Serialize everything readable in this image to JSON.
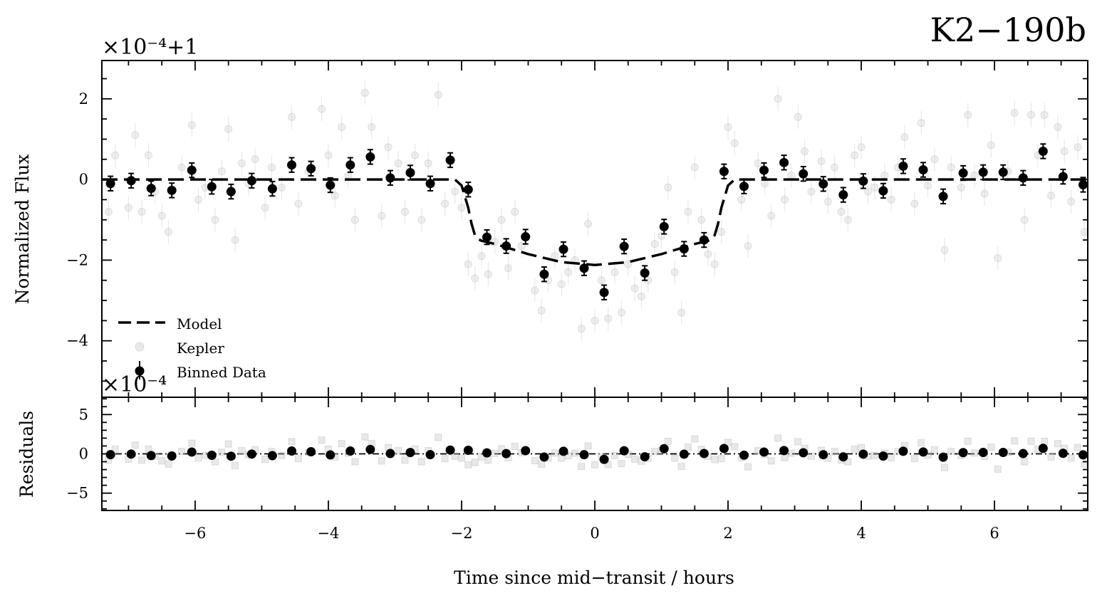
{
  "chart_data": {
    "type": "scatter",
    "title": "K2−190b",
    "xlabel": "Time since mid−transit / hours",
    "xlim": [
      -7.4,
      7.4
    ],
    "x_ticks": [
      "−6",
      "−4",
      "−2",
      "0",
      "2",
      "4",
      "6"
    ],
    "x_tick_values": [
      -6,
      -4,
      -2,
      0,
      2,
      4,
      6
    ],
    "panels": {
      "flux": {
        "ylabel": "Normalized Flux",
        "offset_label": "×10⁻⁴+1",
        "ylim": [
          -5.4,
          2.95
        ],
        "y_ticks": [
          "2",
          "0",
          "−2",
          "−4"
        ],
        "y_tick_values": [
          2,
          0,
          -2,
          -4
        ]
      },
      "residuals": {
        "ylabel": "Residuals",
        "offset_label": "×10⁻⁴",
        "ylim": [
          -7.2,
          7.2
        ],
        "y_ticks": [
          "5",
          "0",
          "−5"
        ],
        "y_tick_values": [
          5,
          0,
          -5
        ]
      }
    },
    "legend": {
      "placement": "lower-left",
      "entries": [
        "Model",
        "Kepler",
        "Binned Data"
      ]
    },
    "series": [
      {
        "name": "Model",
        "style": "dashed-line",
        "color": "#000000",
        "x": [
          -7.4,
          -2.1,
          -2.0,
          -1.9,
          -1.85,
          -1.8,
          -1.75,
          -1.7,
          -1.5,
          -1.0,
          -0.5,
          0.0,
          0.5,
          1.0,
          1.5,
          1.7,
          1.75,
          1.8,
          1.85,
          1.9,
          2.0,
          2.1,
          7.4
        ],
        "y": [
          0,
          0,
          -0.15,
          -0.7,
          -1.1,
          -1.38,
          -1.48,
          -1.52,
          -1.6,
          -1.85,
          -2.05,
          -2.12,
          -2.05,
          -1.85,
          -1.6,
          -1.52,
          -1.48,
          -1.38,
          -1.1,
          -0.7,
          -0.15,
          0,
          0
        ]
      },
      {
        "name": "Binned Data",
        "style": "marker-errorbar",
        "color": "#000000",
        "yerr": 0.18,
        "x": [
          -7.27,
          -6.96,
          -6.66,
          -6.35,
          -6.05,
          -5.75,
          -5.46,
          -5.15,
          -4.84,
          -4.55,
          -4.26,
          -3.97,
          -3.67,
          -3.37,
          -3.07,
          -2.77,
          -2.47,
          -2.17,
          -1.9,
          -1.62,
          -1.33,
          -1.04,
          -0.76,
          -0.47,
          -0.16,
          0.14,
          0.44,
          0.75,
          1.04,
          1.34,
          1.64,
          1.94,
          2.24,
          2.54,
          2.84,
          3.13,
          3.43,
          3.73,
          4.03,
          4.33,
          4.63,
          4.93,
          5.23,
          5.53,
          5.83,
          6.13,
          6.43,
          6.73,
          7.03,
          7.33
        ],
        "y": [
          -0.1,
          -0.03,
          -0.22,
          -0.27,
          0.23,
          -0.18,
          -0.3,
          -0.03,
          -0.23,
          0.36,
          0.27,
          -0.14,
          0.36,
          0.56,
          0.04,
          0.17,
          -0.1,
          0.48,
          -0.25,
          -1.43,
          -1.65,
          -1.42,
          -2.35,
          -1.73,
          -2.2,
          -2.8,
          -1.66,
          -2.32,
          -1.17,
          -1.72,
          -1.5,
          0.2,
          -0.17,
          0.23,
          0.42,
          0.14,
          -0.11,
          -0.38,
          -0.04,
          -0.28,
          0.33,
          0.24,
          -0.42,
          0.16,
          0.18,
          0.18,
          0.04,
          0.7,
          0.07,
          -0.13
        ]
      },
      {
        "name": "Kepler",
        "style": "faint-marker-errorbar",
        "color": "#bfbfbf",
        "yerr": 0.3,
        "x": [
          -7.3,
          -7.2,
          -7.0,
          -6.9,
          -6.8,
          -6.7,
          -6.6,
          -6.5,
          -6.4,
          -6.2,
          -6.05,
          -5.95,
          -5.85,
          -5.7,
          -5.6,
          -5.5,
          -5.4,
          -5.3,
          -5.2,
          -5.1,
          -4.95,
          -4.85,
          -4.7,
          -4.55,
          -4.45,
          -4.3,
          -4.1,
          -4.0,
          -3.9,
          -3.8,
          -3.7,
          -3.6,
          -3.45,
          -3.35,
          -3.2,
          -3.1,
          -2.95,
          -2.85,
          -2.7,
          -2.6,
          -2.5,
          -2.35,
          -2.25,
          -2.1,
          -2.0,
          -1.9,
          -1.8,
          -1.7,
          -1.6,
          -1.5,
          -1.4,
          -1.3,
          -1.2,
          -1.1,
          -0.9,
          -0.8,
          -0.7,
          -0.6,
          -0.5,
          -0.4,
          -0.3,
          -0.2,
          -0.1,
          0.0,
          0.1,
          0.2,
          0.3,
          0.4,
          0.5,
          0.6,
          0.7,
          0.8,
          0.9,
          1.0,
          1.1,
          1.2,
          1.3,
          1.4,
          1.5,
          1.6,
          1.7,
          1.8,
          1.9,
          2.0,
          2.1,
          2.2,
          2.3,
          2.45,
          2.55,
          2.65,
          2.75,
          2.85,
          2.95,
          3.05,
          3.15,
          3.25,
          3.4,
          3.5,
          3.6,
          3.7,
          3.8,
          3.9,
          4.0,
          4.1,
          4.2,
          4.35,
          4.45,
          4.55,
          4.65,
          4.8,
          4.9,
          5.0,
          5.1,
          5.25,
          5.35,
          5.5,
          5.6,
          5.7,
          5.85,
          5.95,
          6.05,
          6.2,
          6.3,
          6.45,
          6.55,
          6.65,
          6.75,
          6.85,
          6.95,
          7.05,
          7.15,
          7.25,
          7.35
        ],
        "y": [
          -0.8,
          0.6,
          -0.7,
          1.1,
          -0.8,
          0.6,
          -0.3,
          -0.9,
          -1.3,
          0.3,
          1.35,
          -0.5,
          -0.2,
          -1.0,
          0.2,
          1.25,
          -1.5,
          0.4,
          -0.1,
          0.5,
          -0.7,
          0.3,
          -0.2,
          1.55,
          -0.6,
          0.2,
          1.75,
          0.6,
          -0.4,
          1.3,
          0.1,
          -1.0,
          2.15,
          1.3,
          -0.9,
          0.8,
          0.4,
          -0.8,
          0.6,
          -1.0,
          0.4,
          2.1,
          -0.6,
          -0.3,
          -0.7,
          -2.1,
          -2.45,
          -1.9,
          -2.35,
          -1.55,
          -1.0,
          -2.2,
          -0.8,
          -1.65,
          -2.75,
          -3.25,
          -2.5,
          -1.9,
          -2.6,
          -2.3,
          -2.0,
          -3.7,
          -1.1,
          -3.5,
          -2.5,
          -3.45,
          -2.3,
          -3.3,
          -2.1,
          -2.7,
          -2.9,
          -2.5,
          -1.6,
          -1.4,
          -0.2,
          -2.3,
          -3.3,
          -0.8,
          0.3,
          -1.0,
          -1.85,
          -2.1,
          -1.3,
          1.3,
          0.9,
          -0.5,
          -1.65,
          0.4,
          -0.1,
          -0.9,
          2.0,
          -0.5,
          0.1,
          1.55,
          0.7,
          -0.3,
          0.45,
          -0.55,
          0.3,
          -0.8,
          -1.0,
          0.6,
          0.8,
          -0.3,
          -0.2,
          0.1,
          -0.5,
          0.3,
          1.05,
          -0.6,
          1.4,
          -0.15,
          0.5,
          -1.75,
          0.3,
          -0.2,
          1.6,
          0.1,
          -0.35,
          0.85,
          -1.95,
          0.2,
          1.65,
          -1.0,
          1.6,
          0.6,
          1.6,
          -0.4,
          1.3,
          0.7,
          -0.55,
          0.8,
          -1.3
        ]
      }
    ]
  }
}
